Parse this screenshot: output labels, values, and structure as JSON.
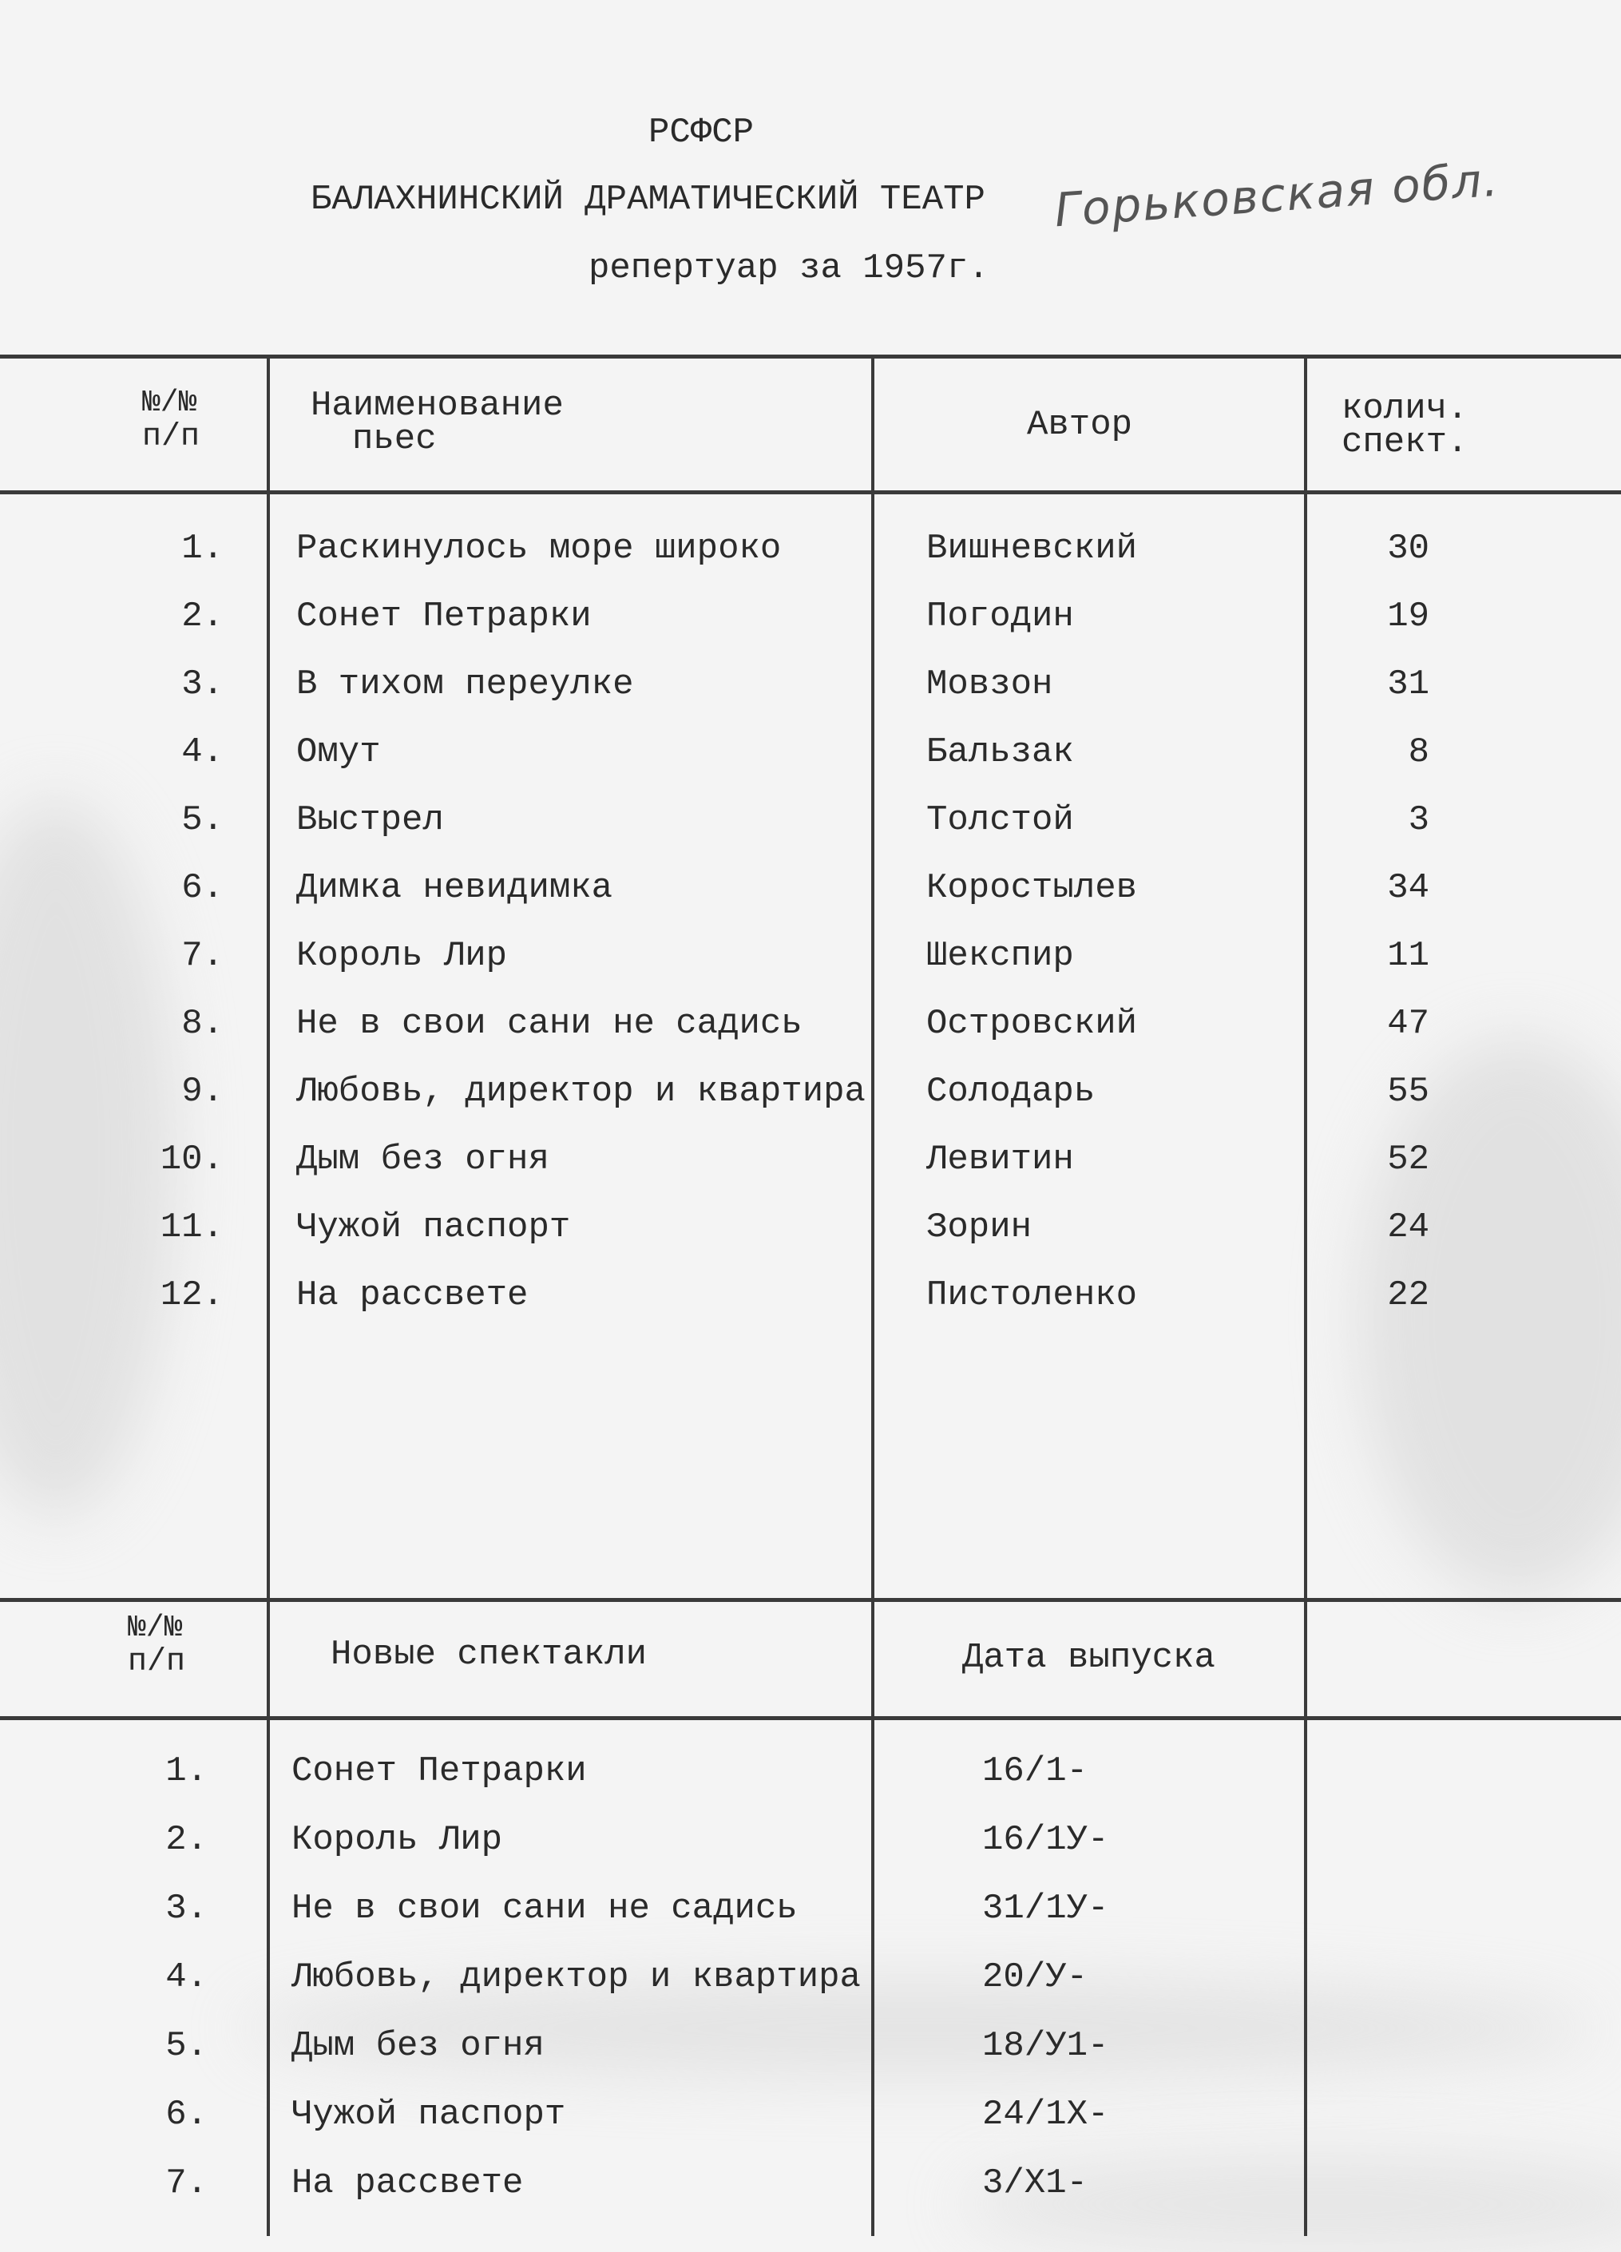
{
  "header": {
    "republic": "РСФСР",
    "theatre": "БАЛАХНИНСКИЙ ДРАМАТИЧЕСКИЙ ТЕАТР",
    "handwritten_region": "Горьковская обл.",
    "subtitle": "репертуар за 1957г."
  },
  "repertoire": {
    "columns": {
      "number_line1": "№/№",
      "number_line2": "п/п",
      "title_line1": "Наименование",
      "title_line2": "пьес",
      "author": "Автор",
      "count_line1": "колич.",
      "count_line2": "спект."
    },
    "rows": [
      {
        "n": "1.",
        "title": "Раскинулось море широко",
        "author": "Вишневский",
        "count": "30"
      },
      {
        "n": "2.",
        "title": "Сонет Петрарки",
        "author": "Погодин",
        "count": "19"
      },
      {
        "n": "3.",
        "title": "В тихом переулке",
        "author": "Мовзон",
        "count": "31"
      },
      {
        "n": "4.",
        "title": "Омут",
        "author": "Бальзак",
        "count": "8"
      },
      {
        "n": "5.",
        "title": "Выстрел",
        "author": "Толстой",
        "count": "3"
      },
      {
        "n": "6.",
        "title": "Димка невидимка",
        "author": "Коростылев",
        "count": "34"
      },
      {
        "n": "7.",
        "title": "Король Лир",
        "author": "Шекспир",
        "count": "11"
      },
      {
        "n": "8.",
        "title": "Не в свои сани не садись",
        "author": "Островский",
        "count": "47"
      },
      {
        "n": "9.",
        "title": "Любовь, директор и квартира",
        "author": "Солодарь",
        "count": "55"
      },
      {
        "n": "10.",
        "title": "Дым без огня",
        "author": "Левитин",
        "count": "52"
      },
      {
        "n": "11.",
        "title": "Чужой паспорт",
        "author": "Зорин",
        "count": "24"
      },
      {
        "n": "12.",
        "title": "На рассвете",
        "author": "Пистоленко",
        "count": "22"
      }
    ]
  },
  "premieres": {
    "columns": {
      "number_line1": "№/№",
      "number_line2": "п/п",
      "title": "Новые спектакли",
      "date": "Дата выпуска"
    },
    "rows": [
      {
        "n": "1.",
        "title": "Сонет Петрарки",
        "date": "16/1-"
      },
      {
        "n": "2.",
        "title": "Король Лир",
        "date": "16/1У-"
      },
      {
        "n": "3.",
        "title": "Не в свои сани не садись",
        "date": "31/1У-"
      },
      {
        "n": "4.",
        "title": "Любовь, директор и квартира",
        "date": "20/У-"
      },
      {
        "n": "5.",
        "title": "Дым без огня",
        "date": "18/У1-"
      },
      {
        "n": "6.",
        "title": "Чужой паспорт",
        "date": "24/1Х-"
      },
      {
        "n": "7.",
        "title": "На рассвете",
        "date": "3/Х1-"
      }
    ]
  }
}
